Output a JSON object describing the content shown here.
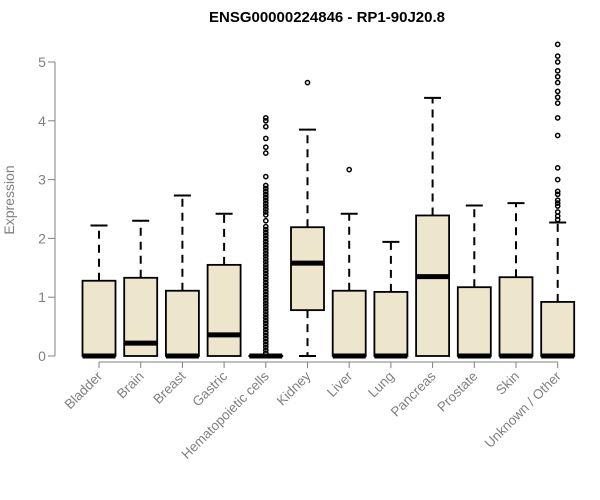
{
  "colors": {
    "box_fill": "#EDE6CD",
    "stroke": "#000000",
    "axis": "#808080",
    "title": "#000000"
  },
  "chart_data": {
    "type": "boxplot",
    "title": "ENSG00000224846 - RP1-90J20.8",
    "ylabel": "Expression",
    "xlabel": "",
    "ylim": [
      0,
      5.3
    ],
    "yticks": [
      0,
      1,
      2,
      3,
      4,
      5
    ],
    "grid": false,
    "categories": [
      "Bladder",
      "Brain",
      "Breast",
      "Gastric",
      "Hematopoietic cells",
      "Kidney",
      "Liver",
      "Lung",
      "Pancreas",
      "Prostate",
      "Skin",
      "Unknown / Other"
    ],
    "boxes": [
      {
        "category": "Bladder",
        "whisker_low": 0,
        "q1": 0,
        "median": 0,
        "q3": 1.28,
        "whisker_high": 2.22,
        "outliers": []
      },
      {
        "category": "Brain",
        "whisker_low": 0,
        "q1": 0,
        "median": 0.22,
        "q3": 1.33,
        "whisker_high": 2.3,
        "outliers": []
      },
      {
        "category": "Breast",
        "whisker_low": 0,
        "q1": 0,
        "median": 0,
        "q3": 1.11,
        "whisker_high": 2.73,
        "outliers": []
      },
      {
        "category": "Gastric",
        "whisker_low": 0,
        "q1": 0,
        "median": 0.36,
        "q3": 1.55,
        "whisker_high": 2.42,
        "outliers": []
      },
      {
        "category": "Hematopoietic cells",
        "whisker_low": 0,
        "q1": 0,
        "median": 0,
        "q3": 0,
        "whisker_high": 0,
        "outliers": [
          0.05,
          0.1,
          0.15,
          0.2,
          0.25,
          0.3,
          0.35,
          0.4,
          0.45,
          0.5,
          0.55,
          0.6,
          0.65,
          0.7,
          0.75,
          0.8,
          0.85,
          0.9,
          0.95,
          1.0,
          1.05,
          1.1,
          1.15,
          1.2,
          1.25,
          1.3,
          1.35,
          1.4,
          1.45,
          1.5,
          1.55,
          1.6,
          1.65,
          1.7,
          1.75,
          1.8,
          1.85,
          1.9,
          1.95,
          2.0,
          2.05,
          2.1,
          2.15,
          2.2,
          2.3,
          2.4,
          2.45,
          2.5,
          2.55,
          2.6,
          2.65,
          2.7,
          2.75,
          2.8,
          2.85,
          2.9,
          3.05,
          3.45,
          3.55,
          3.7,
          3.9,
          4.0,
          4.05
        ]
      },
      {
        "category": "Kidney",
        "whisker_low": 0,
        "q1": 0.78,
        "median": 1.58,
        "q3": 2.19,
        "whisker_high": 3.85,
        "outliers": [
          4.65
        ]
      },
      {
        "category": "Liver",
        "whisker_low": 0,
        "q1": 0,
        "median": 0,
        "q3": 1.11,
        "whisker_high": 2.42,
        "outliers": [
          3.17
        ]
      },
      {
        "category": "Lung",
        "whisker_low": 0,
        "q1": 0,
        "median": 0,
        "q3": 1.09,
        "whisker_high": 1.94,
        "outliers": []
      },
      {
        "category": "Pancreas",
        "whisker_low": 0,
        "q1": 0,
        "median": 1.35,
        "q3": 2.39,
        "whisker_high": 4.39,
        "outliers": []
      },
      {
        "category": "Prostate",
        "whisker_low": 0,
        "q1": 0,
        "median": 0,
        "q3": 1.17,
        "whisker_high": 2.56,
        "outliers": []
      },
      {
        "category": "Skin",
        "whisker_low": 0,
        "q1": 0,
        "median": 0,
        "q3": 1.34,
        "whisker_high": 2.6,
        "outliers": []
      },
      {
        "category": "Unknown / Other",
        "whisker_low": 0,
        "q1": 0,
        "median": 0,
        "q3": 0.92,
        "whisker_high": 2.27,
        "outliers": [
          2.32,
          2.38,
          2.45,
          2.55,
          2.6,
          2.65,
          2.75,
          2.8,
          3.0,
          3.2,
          3.75,
          4.05,
          4.3,
          4.4,
          4.5,
          4.65,
          4.75,
          4.85,
          5.0,
          5.1,
          5.3
        ]
      }
    ]
  }
}
